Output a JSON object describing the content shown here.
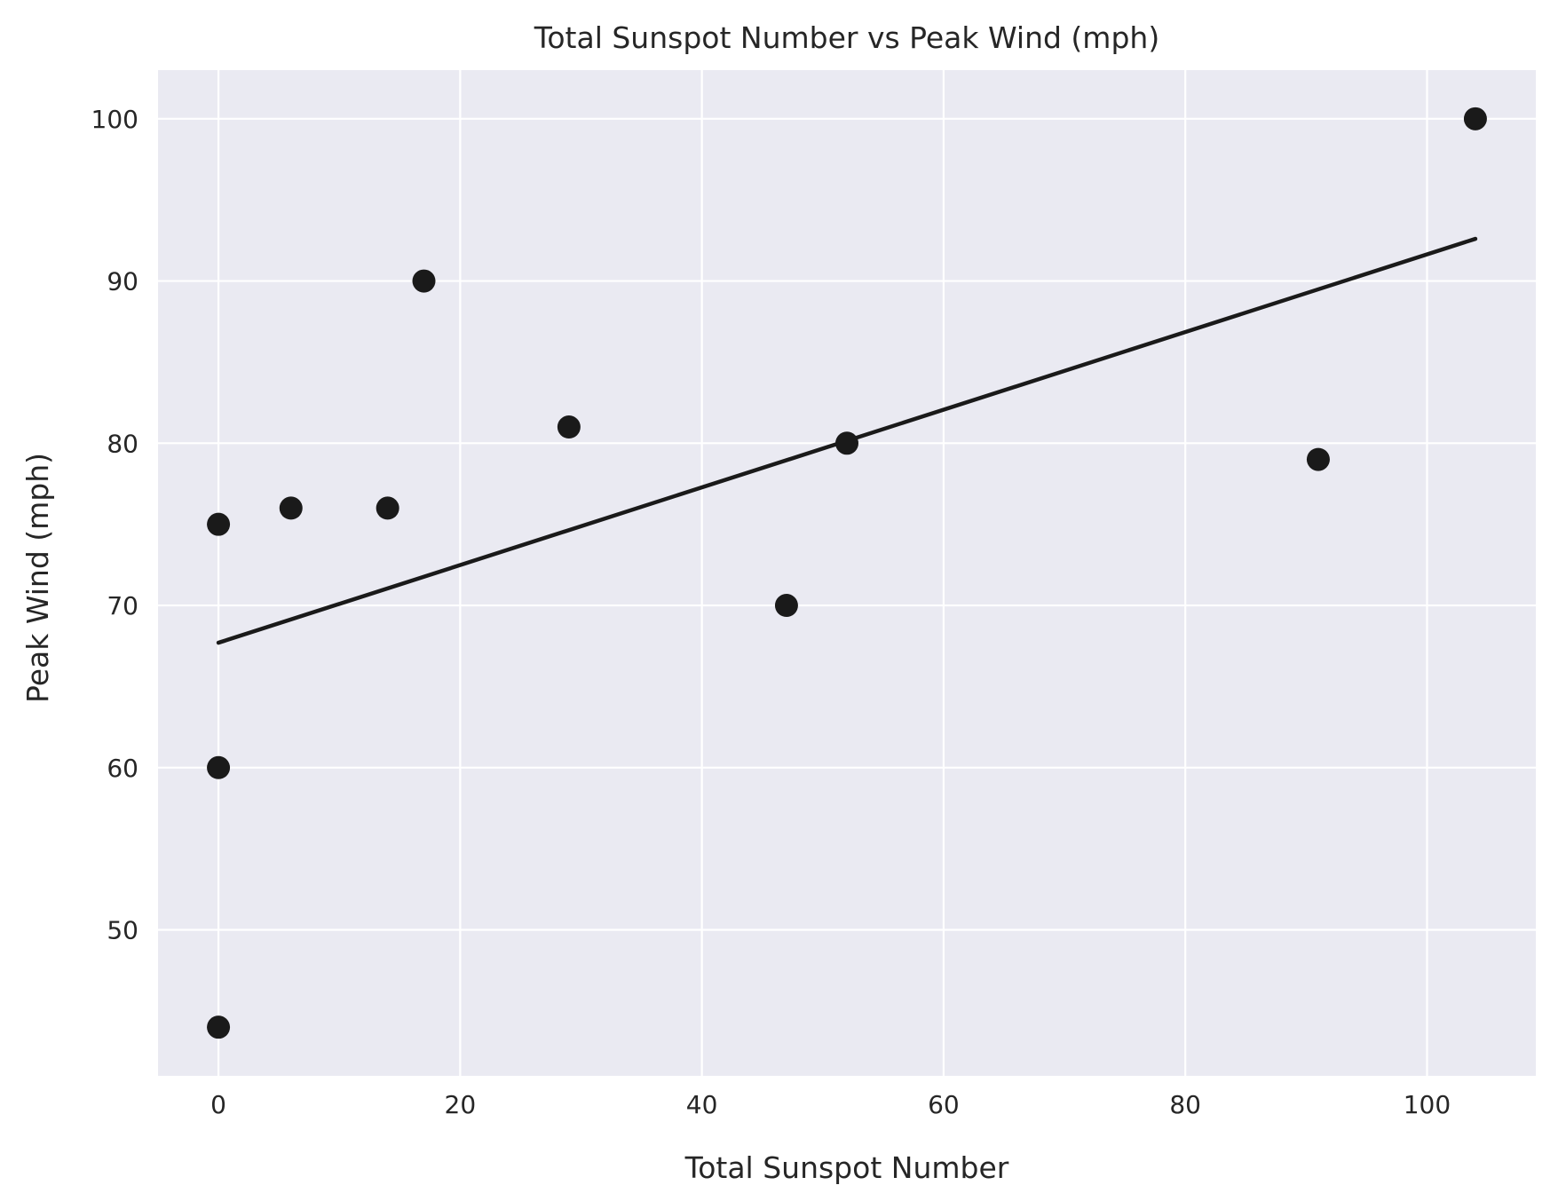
{
  "chart_data": {
    "type": "scatter",
    "title": "Total Sunspot Number vs Peak Wind (mph)",
    "xlabel": "Total Sunspot Number",
    "ylabel": "Peak Wind (mph)",
    "xlim": [
      -5,
      109
    ],
    "ylim": [
      41,
      103
    ],
    "xticks": [
      0,
      20,
      40,
      60,
      80,
      100
    ],
    "yticks": [
      50,
      60,
      70,
      80,
      90,
      100
    ],
    "grid": true,
    "legend": "none",
    "colors": {
      "plot_background": "#eaeaf2",
      "grid": "#ffffff",
      "points": "#1a1a1a",
      "trend_line": "#1a1a1a",
      "text": "#262626"
    },
    "series": [
      {
        "type": "scatter",
        "points": [
          {
            "x": 0,
            "y": 75
          },
          {
            "x": 0,
            "y": 60
          },
          {
            "x": 0,
            "y": 44
          },
          {
            "x": 6,
            "y": 76
          },
          {
            "x": 14,
            "y": 76
          },
          {
            "x": 17,
            "y": 90
          },
          {
            "x": 29,
            "y": 81
          },
          {
            "x": 47,
            "y": 70
          },
          {
            "x": 52,
            "y": 80
          },
          {
            "x": 91,
            "y": 79
          },
          {
            "x": 104,
            "y": 100
          }
        ]
      },
      {
        "type": "line",
        "points": [
          {
            "x": 0,
            "y": 67.7
          },
          {
            "x": 104,
            "y": 92.6
          }
        ]
      }
    ]
  }
}
